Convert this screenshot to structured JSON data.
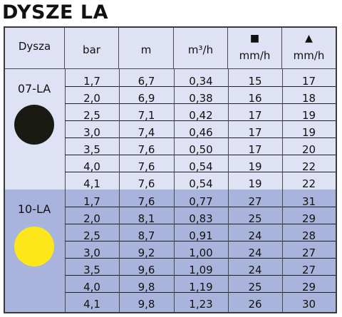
{
  "title": "DYSZE LA",
  "headers": {
    "dysza": "Dysza",
    "bar": "bar",
    "m": "m",
    "flow": "m³/h",
    "sq_unit": "mm/h",
    "tri_unit": "mm/h",
    "sq_symbol": "■",
    "tri_symbol": "▲"
  },
  "groups": [
    {
      "name": "07-LA",
      "color": "#1a1a14",
      "rows": [
        [
          "1,7",
          "6,7",
          "0,34",
          "15",
          "17"
        ],
        [
          "2,0",
          "6,9",
          "0,38",
          "16",
          "18"
        ],
        [
          "2,5",
          "7,1",
          "0,42",
          "17",
          "19"
        ],
        [
          "3,0",
          "7,4",
          "0,46",
          "17",
          "19"
        ],
        [
          "3,5",
          "7,6",
          "0,50",
          "17",
          "20"
        ],
        [
          "4,0",
          "7,6",
          "0,54",
          "19",
          "22"
        ],
        [
          "4,1",
          "7,6",
          "0,54",
          "19",
          "22"
        ]
      ]
    },
    {
      "name": "10-LA",
      "color": "#fde61a",
      "rows": [
        [
          "1,7",
          "7,6",
          "0,77",
          "27",
          "31"
        ],
        [
          "2,0",
          "8,1",
          "0,83",
          "25",
          "29"
        ],
        [
          "2,5",
          "8,7",
          "0,91",
          "24",
          "28"
        ],
        [
          "3,0",
          "9,2",
          "1,00",
          "24",
          "27"
        ],
        [
          "3,5",
          "9,6",
          "1,09",
          "24",
          "27"
        ],
        [
          "4,0",
          "9,8",
          "1,19",
          "25",
          "29"
        ],
        [
          "4,1",
          "9,8",
          "1,23",
          "26",
          "30"
        ]
      ]
    }
  ]
}
